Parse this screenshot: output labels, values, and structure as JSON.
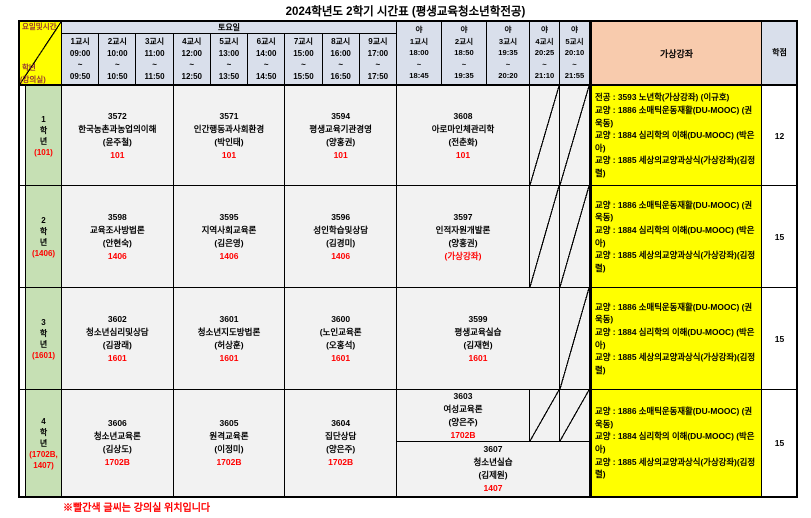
{
  "title": "2024학년도 2학기 시간표 (평생교육청소년학전공)",
  "footer_note": "※빨간색 글씨는 강의실 위치입니다",
  "header": {
    "corner": {
      "diagonal_top": "요일및시간",
      "grade_label": "학년",
      "room_label": "(강의실)"
    },
    "day_group": "토요일",
    "tilde": "~",
    "night_prefix": "야",
    "virtual_label": "가상강좌",
    "credits_label": "학점",
    "grade_word": "학년",
    "day_periods": [
      {
        "name": "1교시",
        "start": "09:00",
        "end": "09:50"
      },
      {
        "name": "2교시",
        "start": "10:00",
        "end": "10:50"
      },
      {
        "name": "3교시",
        "start": "11:00",
        "end": "11:50"
      },
      {
        "name": "4교시",
        "start": "12:00",
        "end": "12:50"
      },
      {
        "name": "5교시",
        "start": "13:00",
        "end": "13:50"
      },
      {
        "name": "6교시",
        "start": "14:00",
        "end": "14:50"
      },
      {
        "name": "7교시",
        "start": "15:00",
        "end": "15:50"
      },
      {
        "name": "8교시",
        "start": "16:00",
        "end": "16:50"
      },
      {
        "name": "9교시",
        "start": "17:00",
        "end": "17:50"
      }
    ],
    "night_periods": [
      {
        "name": "1교시",
        "start": "18:00",
        "end": "18:45"
      },
      {
        "name": "2교시",
        "start": "18:50",
        "end": "19:35"
      },
      {
        "name": "3교시",
        "start": "19:35",
        "end": "20:20"
      },
      {
        "name": "4교시",
        "start": "20:25",
        "end": "21:10"
      },
      {
        "name": "5교시",
        "start": "20:10",
        "end": "21:55"
      }
    ]
  },
  "rows": [
    {
      "grade": "1",
      "room": "(101)",
      "credits": "12",
      "courses": [
        {
          "code": "3572",
          "name": "한국농촌과농업의이해",
          "prof": "(윤주철)",
          "room": "101"
        },
        {
          "code": "3571",
          "name": "인간행동과사회환경",
          "prof": "(박인태)",
          "room": "101"
        },
        {
          "code": "3594",
          "name": "평생교육기관경영",
          "prof": "(양홍권)",
          "room": "101"
        }
      ],
      "night_courses": [
        {
          "code": "3608",
          "name": "아로마인체관리학",
          "prof": "(전춘화)",
          "room": "101",
          "span": 3,
          "pos": "full"
        }
      ],
      "diagonals": [
        {
          "col": 4,
          "pos": "full"
        },
        {
          "col": 5,
          "pos": "full"
        }
      ],
      "virtual_lines": [
        "전공 : 3593 노년학(가상강좌) (이규호)",
        "교양 : 1886 소매틱운동재활(DU-MOOC) (권욱동)",
        "교양 : 1884 심리학의 이해(DU-MOOC) (박은아)",
        "교양 : 1885 세상의교양과상식(가상강좌)(김정렬)"
      ]
    },
    {
      "grade": "2",
      "room": "(1406)",
      "credits": "15",
      "courses": [
        {
          "code": "3598",
          "name": "교육조사방법론",
          "prof": "(안현숙)",
          "room": "1406"
        },
        {
          "code": "3595",
          "name": "지역사회교육론",
          "prof": "(김은영)",
          "room": "1406"
        },
        {
          "code": "3596",
          "name": "성인학습및상담",
          "prof": "(김경미)",
          "room": "1406"
        }
      ],
      "night_courses": [
        {
          "code": "3597",
          "name": "인적자원개발론",
          "prof": "(양홍권)",
          "room": "(가상강좌)",
          "span": 3,
          "pos": "full"
        }
      ],
      "diagonals": [
        {
          "col": 4,
          "pos": "full"
        },
        {
          "col": 5,
          "pos": "full"
        }
      ],
      "virtual_lines": [
        "교양 : 1886 소매틱운동재활(DU-MOOC) (권욱동)",
        "교양 : 1884 심리학의 이해(DU-MOOC) (박은아)",
        "교양 : 1885 세상의교양과상식(가상강좌)(김정렬)"
      ]
    },
    {
      "grade": "3",
      "room": "(1601)",
      "credits": "15",
      "courses": [
        {
          "code": "3602",
          "name": "청소년심리및상담",
          "prof": "(김광래)",
          "room": "1601"
        },
        {
          "code": "3601",
          "name": "청소년지도방법론",
          "prof": "(허상훈)",
          "room": "1601"
        },
        {
          "code": "3600",
          "name": "(노인교육론",
          "prof": "(오홍석)",
          "room": "1601"
        }
      ],
      "night_courses": [
        {
          "code": "3599",
          "name": "평생교육실습",
          "prof": "(김재현)",
          "room": "1601",
          "span": 4,
          "pos": "full"
        }
      ],
      "diagonals": [
        {
          "col": 5,
          "pos": "full"
        }
      ],
      "virtual_lines": [
        "교양 : 1886 소매틱운동재활(DU-MOOC) (권욱동)",
        "교양 : 1884 심리학의 이해(DU-MOOC) (박은아)",
        "교양 : 1885 세상의교양과상식(가상강좌)(김정렬)"
      ]
    },
    {
      "grade": "4",
      "room": "(1702B, 1407)",
      "credits": "15",
      "courses": [
        {
          "code": "3606",
          "name": "청소년교육론",
          "prof": "(김상도)",
          "room": "1702B"
        },
        {
          "code": "3605",
          "name": "원격교육론",
          "prof": "(이정미)",
          "room": "1702B"
        },
        {
          "code": "3604",
          "name": "집단상담",
          "prof": "(양은주)",
          "room": "1702B"
        }
      ],
      "night_courses": [
        {
          "code": "3603",
          "name": "여성교육론",
          "prof": "(양은주)",
          "room": "1702B",
          "span": 3,
          "pos": "top"
        },
        {
          "code": "3607",
          "name": "청소년실습",
          "prof": "(김제원)",
          "room": "1407",
          "span": 5,
          "pos": "bottom"
        }
      ],
      "diagonals": [
        {
          "col": 4,
          "pos": "top"
        },
        {
          "col": 5,
          "pos": "top"
        }
      ],
      "virtual_lines": [
        "교양 : 1886 소매틱운동재활(DU-MOOC) (권욱동)",
        "교양 : 1884 심리학의 이해(DU-MOOC) (박은아)",
        "교양 : 1885 세상의교양과상식(가상강좌)(김정렬)"
      ]
    }
  ],
  "colors": {
    "header_bg": "#d9dfeb",
    "grade_bg": "#c6e0b4",
    "virtual_header_bg": "#f8cbad",
    "highlight_yellow": "#ffff00",
    "cell_bg": "#f2f2f2",
    "room_red": "#ff0000",
    "corner_text": "#943634"
  }
}
